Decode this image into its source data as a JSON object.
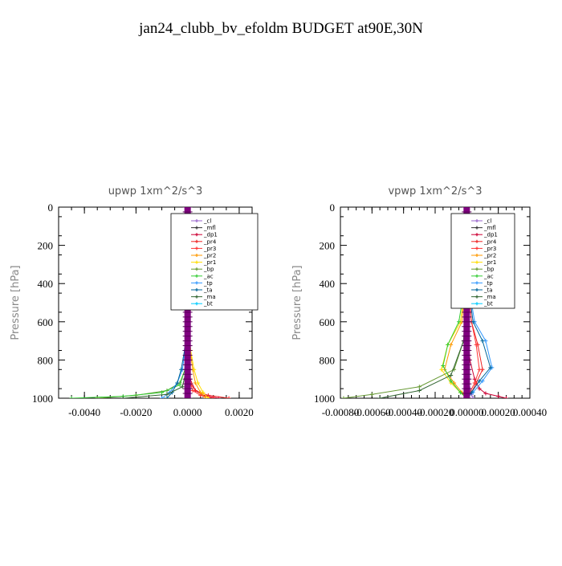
{
  "page": {
    "title": "jan24_clubb_bv_efoldm  BUDGET at90E,30N"
  },
  "colors": {
    "cl": "#9966cc",
    "mfl": "#333333",
    "dp1": "#cc0033",
    "pr4": "#ee2222",
    "pr3": "#ff3333",
    "pr2": "#ff9900",
    "pr1": "#ffdd00",
    "bp": "#669933",
    "ac": "#33cc33",
    "tp": "#3399ff",
    "ta": "#006699",
    "ma": "#336633",
    "bt": "#00ccff",
    "main": "#800080"
  },
  "chart_data": [
    {
      "type": "line",
      "title": "upwp   1xm^2/s^3",
      "ylabel": "Pressure  [hPa]",
      "xlabel": "",
      "xlim": [
        -0.005,
        0.0025
      ],
      "ylim": [
        1000,
        0
      ],
      "xticks": [
        -0.004,
        -0.002,
        0.0,
        0.002
      ],
      "xtick_labels": [
        "-0.0040",
        "-0.0020",
        "0.0000",
        "0.0020"
      ],
      "yticks": [
        0,
        200,
        400,
        600,
        800,
        1000
      ],
      "ytick_labels": [
        "0",
        "200",
        "400",
        "600",
        "800",
        "1000"
      ],
      "grid": false,
      "legend_position": "top-right",
      "legend": [
        "_cl",
        "_mfl",
        "_dp1",
        "_pr4",
        "_pr3",
        "_pr2",
        "_pr1",
        "_bp",
        "_ac",
        "_tp",
        "_ta",
        "_ma",
        "_bt"
      ],
      "series": [
        {
          "name": "_cl",
          "color_key": "cl",
          "x": [
            0,
            0,
            0,
            0,
            0,
            0,
            0,
            2e-05,
            3e-05,
            4e-05,
            4e-05,
            0.0001
          ],
          "y": [
            0,
            200,
            400,
            600,
            700,
            800,
            850,
            900,
            940,
            960,
            980,
            1000
          ]
        },
        {
          "name": "_mfl",
          "color_key": "mfl",
          "x": [
            0,
            0,
            0,
            0,
            0,
            0,
            0,
            0,
            0,
            0
          ],
          "y": [
            0,
            200,
            400,
            600,
            800,
            900,
            950,
            980,
            990,
            1000
          ]
        },
        {
          "name": "_dp1",
          "color_key": "dp1",
          "x": [
            0,
            0,
            0,
            0,
            0,
            0.0001,
            0.0003,
            0.0006,
            0.0012
          ],
          "y": [
            0,
            200,
            400,
            600,
            800,
            900,
            960,
            985,
            1000
          ]
        },
        {
          "name": "_pr4",
          "color_key": "pr4",
          "x": [
            0,
            0,
            0,
            0,
            5e-05,
            0.0001,
            0.0003,
            0.0008,
            0.0016
          ],
          "y": [
            0,
            200,
            400,
            700,
            850,
            920,
            960,
            985,
            1000
          ]
        },
        {
          "name": "_pr3",
          "color_key": "pr3",
          "x": [
            0,
            0,
            0,
            0,
            5e-05,
            0.0001,
            0.0002,
            0.0005,
            0.001
          ],
          "y": [
            0,
            200,
            400,
            700,
            850,
            920,
            960,
            985,
            1000
          ]
        },
        {
          "name": "_pr2",
          "color_key": "pr2",
          "x": [
            0,
            0,
            0,
            2e-05,
            0.0001,
            0.0002,
            0.0003,
            0.0005,
            0.0007
          ],
          "y": [
            0,
            200,
            400,
            600,
            750,
            850,
            920,
            970,
            1000
          ]
        },
        {
          "name": "_pr1",
          "color_key": "pr1",
          "x": [
            0,
            0,
            0,
            3e-05,
            0.00012,
            0.00025,
            0.0004,
            0.0006,
            0.0008
          ],
          "y": [
            0,
            200,
            400,
            600,
            750,
            850,
            920,
            970,
            1000
          ]
        },
        {
          "name": "_bp",
          "color_key": "bp",
          "x": [
            0,
            0,
            0,
            0,
            -0.0001,
            -0.0003,
            -0.0008,
            -0.002,
            -0.0035
          ],
          "y": [
            0,
            200,
            400,
            700,
            850,
            920,
            960,
            985,
            1000
          ]
        },
        {
          "name": "_ac",
          "color_key": "ac",
          "x": [
            0,
            0,
            0,
            0,
            -0.0001,
            -0.0003,
            -0.001,
            -0.0025,
            -0.0045
          ],
          "y": [
            0,
            200,
            400,
            700,
            850,
            930,
            970,
            990,
            1000
          ]
        },
        {
          "name": "_tp",
          "color_key": "tp",
          "x": [
            0,
            0,
            0,
            -3e-05,
            -0.0001,
            -0.0002,
            -0.0004,
            -0.0007,
            -0.001
          ],
          "y": [
            0,
            200,
            400,
            600,
            750,
            850,
            920,
            970,
            1000
          ]
        },
        {
          "name": "_ta",
          "color_key": "ta",
          "x": [
            0,
            0,
            0,
            -3e-05,
            -0.00012,
            -0.00025,
            -0.0004,
            -0.0006,
            -0.0008
          ],
          "y": [
            0,
            200,
            400,
            600,
            750,
            850,
            920,
            970,
            1000
          ]
        },
        {
          "name": "_ma",
          "color_key": "ma",
          "x": [
            0,
            0,
            0,
            0,
            -5e-05,
            -0.0002,
            -0.0008,
            -0.0025
          ],
          "y": [
            0,
            200,
            400,
            700,
            850,
            940,
            980,
            1000
          ]
        },
        {
          "name": "_bt",
          "color_key": "bt",
          "x": [
            0,
            0,
            0,
            0,
            0,
            0,
            0,
            0
          ],
          "y": [
            0,
            200,
            400,
            600,
            800,
            900,
            960,
            1000
          ]
        }
      ]
    },
    {
      "type": "line",
      "title": "vpwp   1xm^2/s^3",
      "ylabel": "Pressure  [hPa]",
      "xlabel": "",
      "xlim": [
        -0.0008,
        0.0004
      ],
      "ylim": [
        1000,
        0
      ],
      "xticks": [
        -0.0008,
        -0.0006,
        -0.0004,
        -0.0002,
        0.0,
        0.0002,
        0.0004
      ],
      "xtick_labels": [
        "-0.00080",
        "-0.00060",
        "-0.00040",
        "-0.00020",
        "0.00000",
        "0.00020",
        "0.00040"
      ],
      "yticks": [
        0,
        200,
        400,
        600,
        800,
        1000
      ],
      "ytick_labels": [
        "0",
        "200",
        "400",
        "600",
        "800",
        "1000"
      ],
      "grid": false,
      "legend_position": "top-right",
      "legend": [
        "_cl",
        "_mfl",
        "_dp1",
        "_pr4",
        "_pr3",
        "_pr2",
        "_pr1",
        "_bp",
        "_ac",
        "_tp",
        "_ta",
        "_ma",
        "_bt"
      ],
      "series": [
        {
          "name": "_cl",
          "color_key": "cl",
          "x": [
            0,
            0,
            0,
            0,
            0,
            1e-05,
            2e-05,
            3e-05,
            4e-05
          ],
          "y": [
            0,
            200,
            400,
            600,
            800,
            900,
            950,
            980,
            1000
          ]
        },
        {
          "name": "_mfl",
          "color_key": "mfl",
          "x": [
            0,
            0,
            0,
            0,
            0,
            0,
            0,
            0
          ],
          "y": [
            0,
            200,
            400,
            600,
            800,
            900,
            960,
            1000
          ]
        },
        {
          "name": "_dp1",
          "color_key": "dp1",
          "x": [
            0,
            0,
            0,
            0,
            2e-05,
            5e-05,
            8e-05,
            0.00012,
            0.0002,
            0.00025
          ],
          "y": [
            0,
            200,
            400,
            600,
            800,
            900,
            950,
            975,
            990,
            1000
          ]
        },
        {
          "name": "_pr4",
          "color_key": "pr4",
          "x": [
            0,
            0,
            1e-05,
            3e-05,
            7e-05,
            0.0001,
            6e-05,
            3e-05,
            1e-05
          ],
          "y": [
            0,
            200,
            400,
            600,
            720,
            850,
            920,
            970,
            1000
          ]
        },
        {
          "name": "_pr3",
          "color_key": "pr3",
          "x": [
            0,
            0,
            1e-05,
            3e-05,
            6e-05,
            8e-05,
            5e-05,
            2e-05,
            0
          ],
          "y": [
            0,
            200,
            400,
            600,
            720,
            850,
            920,
            970,
            1000
          ]
        },
        {
          "name": "_pr2",
          "color_key": "pr2",
          "x": [
            0,
            0,
            -1e-05,
            -3e-05,
            -0.0001,
            -0.00014,
            -8e-05,
            -3e-05,
            0
          ],
          "y": [
            0,
            200,
            400,
            600,
            720,
            850,
            920,
            970,
            1000
          ]
        },
        {
          "name": "_pr1",
          "color_key": "pr1",
          "x": [
            0,
            0,
            -1e-05,
            -4e-05,
            -0.00012,
            -0.00016,
            -0.0001,
            -4e-05,
            0
          ],
          "y": [
            0,
            200,
            400,
            600,
            720,
            850,
            920,
            970,
            1000
          ]
        },
        {
          "name": "_bp",
          "color_key": "bp",
          "x": [
            0,
            0,
            0,
            -2e-05,
            -8e-05,
            -0.0003,
            -0.0006,
            -0.00078
          ],
          "y": [
            0,
            200,
            400,
            700,
            850,
            940,
            980,
            1000
          ]
        },
        {
          "name": "_ac",
          "color_key": "ac",
          "x": [
            0,
            0,
            -1e-05,
            -5e-05,
            -0.00012,
            -0.00015,
            -0.0001,
            -4e-05,
            0
          ],
          "y": [
            0,
            200,
            400,
            600,
            720,
            830,
            910,
            970,
            1000
          ]
        },
        {
          "name": "_tp",
          "color_key": "tp",
          "x": [
            0,
            0,
            1e-05,
            5e-05,
            0.00012,
            0.00016,
            0.0001,
            4e-05,
            0
          ],
          "y": [
            0,
            200,
            400,
            600,
            700,
            840,
            910,
            970,
            1000
          ]
        },
        {
          "name": "_ta",
          "color_key": "ta",
          "x": [
            0,
            0,
            1e-05,
            4e-05,
            0.0001,
            0.00015,
            8e-05,
            3e-05,
            0
          ],
          "y": [
            0,
            200,
            400,
            600,
            700,
            840,
            910,
            970,
            1000
          ]
        },
        {
          "name": "_ma",
          "color_key": "ma",
          "x": [
            0,
            0,
            0,
            -2e-05,
            -0.0001,
            -0.0003,
            -0.00055
          ],
          "y": [
            0,
            200,
            400,
            700,
            880,
            960,
            1000
          ]
        },
        {
          "name": "_bt",
          "color_key": "bt",
          "x": [
            0,
            0,
            0,
            0,
            0,
            0,
            0
          ],
          "y": [
            0,
            200,
            400,
            600,
            800,
            900,
            1000
          ]
        }
      ]
    }
  ]
}
